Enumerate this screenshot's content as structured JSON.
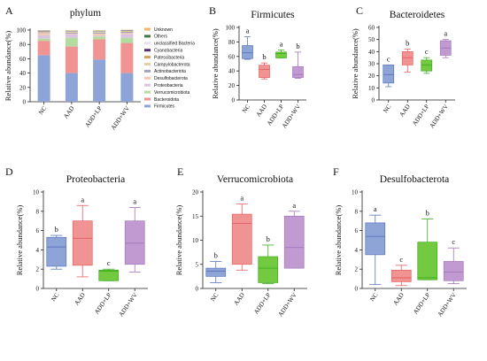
{
  "colors": {
    "NC": "#8ea3d6",
    "AAD": "#f09393",
    "ADD+LP": "#73c93f",
    "ADD+WV": "#c29ad2",
    "box_NC": "#5b77be",
    "box_AAD": "#e45f61",
    "box_LP": "#3fae21",
    "box_WV": "#a377bc"
  },
  "chart_data": [
    {
      "panel": "A",
      "type": "bar",
      "stacked": true,
      "title": "phylum",
      "ylabel": "Relative abundance(%)",
      "ylim": [
        0,
        100
      ],
      "yticks": [
        0,
        20,
        40,
        60,
        80,
        100
      ],
      "categories": [
        "NC",
        "AAD",
        "ADD+LP",
        "ADD+WV"
      ],
      "legend_position": "right",
      "series": [
        {
          "name": "Firmicutes",
          "color": "#8ea3d6",
          "values": [
            65,
            40,
            59,
            40
          ]
        },
        {
          "name": "Bacteroidota",
          "color": "#f09393",
          "values": [
            20,
            37,
            28,
            42
          ]
        },
        {
          "name": "Verrucomicrobiota",
          "color": "#b3dc9e",
          "values": [
            3,
            12,
            4,
            7
          ]
        },
        {
          "name": "Proteobacteria",
          "color": "#d9c4e0",
          "values": [
            5,
            5,
            1,
            5
          ]
        },
        {
          "name": "Desulfobacterota",
          "color": "#f3c9b0",
          "values": [
            3,
            1,
            3,
            2
          ]
        },
        {
          "name": "Actinobacteriota",
          "color": "#9fa7b8",
          "values": [
            1,
            1.5,
            1.5,
            1.5
          ]
        },
        {
          "name": "Campylobacterota",
          "color": "#e6d1a6",
          "values": [
            0.8,
            0.8,
            0.8,
            0.8
          ]
        },
        {
          "name": "Patescibacteria",
          "color": "#cfa25e",
          "values": [
            0.6,
            0.6,
            0.6,
            0.6
          ]
        },
        {
          "name": "Cyanobacteria",
          "color": "#5a2f74",
          "values": [
            0.4,
            0.4,
            0.4,
            0.4
          ]
        },
        {
          "name": "unclassified Bacteria",
          "color": "#e8e0ee",
          "values": [
            0.4,
            0.4,
            0.4,
            0.4
          ]
        },
        {
          "name": "Others",
          "color": "#3e7a3e",
          "values": [
            0.5,
            0.5,
            0.5,
            0.5
          ]
        },
        {
          "name": "Unknown",
          "color": "#f2b66a",
          "values": [
            0.3,
            0.3,
            0.3,
            0.3
          ]
        }
      ],
      "legend_order": [
        "Unknown",
        "Others",
        "unclassified Bacteria",
        "Cyanobacteria",
        "Patescibacteria",
        "Campylobacterota",
        "Actinobacteriota",
        "Desulfobacterota",
        "Proteobacteria",
        "Verrucomicrobiota",
        "Bacteroidota",
        "Firmicutes"
      ]
    },
    {
      "panel": "B",
      "type": "box",
      "title": "Firmicutes",
      "ylabel": "Relative abundance(%)",
      "ylim": [
        0,
        100
      ],
      "yticks": [
        0,
        20,
        40,
        60,
        80,
        100
      ],
      "categories": [
        "NC",
        "AAD",
        "ADD+LP",
        "ADD+WV"
      ],
      "boxes": [
        {
          "min": 56,
          "q1": 57,
          "median": 65,
          "q3": 75,
          "max": 87,
          "letter": "a"
        },
        {
          "min": 29,
          "q1": 31,
          "median": 42,
          "q3": 48,
          "max": 51,
          "letter": "b"
        },
        {
          "min": 58,
          "q1": 58,
          "median": 64,
          "q3": 66,
          "max": 69,
          "letter": "a"
        },
        {
          "min": 30,
          "q1": 31,
          "median": 35,
          "q3": 46,
          "max": 66,
          "letter": "b"
        }
      ]
    },
    {
      "panel": "C",
      "type": "box",
      "title": "Bacteroidetes",
      "ylabel": "Relative abundance(%)",
      "ylim": [
        0,
        60
      ],
      "yticks": [
        0,
        10,
        20,
        30,
        40,
        50,
        60
      ],
      "categories": [
        "NC",
        "AAD",
        "ADD+LP",
        "ADD+WV"
      ],
      "boxes": [
        {
          "min": 11,
          "q1": 14,
          "median": 21,
          "q3": 29,
          "max": 29,
          "letter": "c"
        },
        {
          "min": 23,
          "q1": 29,
          "median": 35,
          "q3": 40,
          "max": 42,
          "letter": "b"
        },
        {
          "min": 22,
          "q1": 24,
          "median": 29,
          "q3": 33,
          "max": 35,
          "letter": "c"
        },
        {
          "min": 35,
          "q1": 37,
          "median": 43,
          "q3": 49,
          "max": 50,
          "letter": "a"
        }
      ]
    },
    {
      "panel": "D",
      "type": "box",
      "title": "Proteobacteria",
      "ylabel": "Relative abundance(%)",
      "ylim": [
        0,
        10
      ],
      "yticks": [
        0,
        2,
        4,
        6,
        8,
        10
      ],
      "categories": [
        "NC",
        "AAD",
        "ADD+LP",
        "ADD+WV"
      ],
      "boxes": [
        {
          "min": 2.0,
          "q1": 2.3,
          "median": 4.3,
          "q3": 5.3,
          "max": 5.5,
          "letter": "b"
        },
        {
          "min": 1.2,
          "q1": 2.4,
          "median": 5.2,
          "q3": 7.0,
          "max": 8.6,
          "letter": "a"
        },
        {
          "min": 0.8,
          "q1": 0.8,
          "median": 1.8,
          "q3": 1.9,
          "max": 2.0,
          "letter": "c"
        },
        {
          "min": 1.7,
          "q1": 2.5,
          "median": 4.7,
          "q3": 7.0,
          "max": 8.4,
          "letter": "a"
        }
      ]
    },
    {
      "panel": "E",
      "type": "box",
      "title": "Verrucomicrobiota",
      "ylabel": "Relative abundance(%)",
      "ylim": [
        0,
        20
      ],
      "yticks": [
        0,
        5,
        10,
        15,
        20
      ],
      "categories": [
        "NC",
        "AAD",
        "ADD+LP",
        "ADD+WV"
      ],
      "boxes": [
        {
          "min": 1.2,
          "q1": 2.5,
          "median": 3.6,
          "q3": 4.2,
          "max": 5.6,
          "letter": "b"
        },
        {
          "min": 3.8,
          "q1": 5.0,
          "median": 13.5,
          "q3": 15.4,
          "max": 17.5,
          "letter": "a"
        },
        {
          "min": 1.0,
          "q1": 1.2,
          "median": 4.2,
          "q3": 6.6,
          "max": 9.0,
          "letter": "b"
        },
        {
          "min": 4.2,
          "q1": 4.2,
          "median": 8.5,
          "q3": 15.0,
          "max": 16.0,
          "letter": "a"
        }
      ]
    },
    {
      "panel": "F",
      "type": "box",
      "title": "Desulfobacterota",
      "ylabel": "Relative abundance(%)",
      "ylim": [
        0,
        10
      ],
      "yticks": [
        0,
        2,
        4,
        6,
        8,
        10
      ],
      "categories": [
        "NC",
        "AAD",
        "ADD+LP",
        "ADD+WV"
      ],
      "boxes": [
        {
          "min": 0.4,
          "q1": 3.5,
          "median": 5.4,
          "q3": 6.8,
          "max": 7.6,
          "letter": "a"
        },
        {
          "min": 0.3,
          "q1": 0.7,
          "median": 1.1,
          "q3": 1.9,
          "max": 2.4,
          "letter": "c"
        },
        {
          "min": 0.9,
          "q1": 0.9,
          "median": 1.1,
          "q3": 4.8,
          "max": 7.2,
          "letter": "b"
        },
        {
          "min": 0.5,
          "q1": 0.8,
          "median": 1.7,
          "q3": 2.8,
          "max": 4.2,
          "letter": "c"
        }
      ]
    }
  ]
}
